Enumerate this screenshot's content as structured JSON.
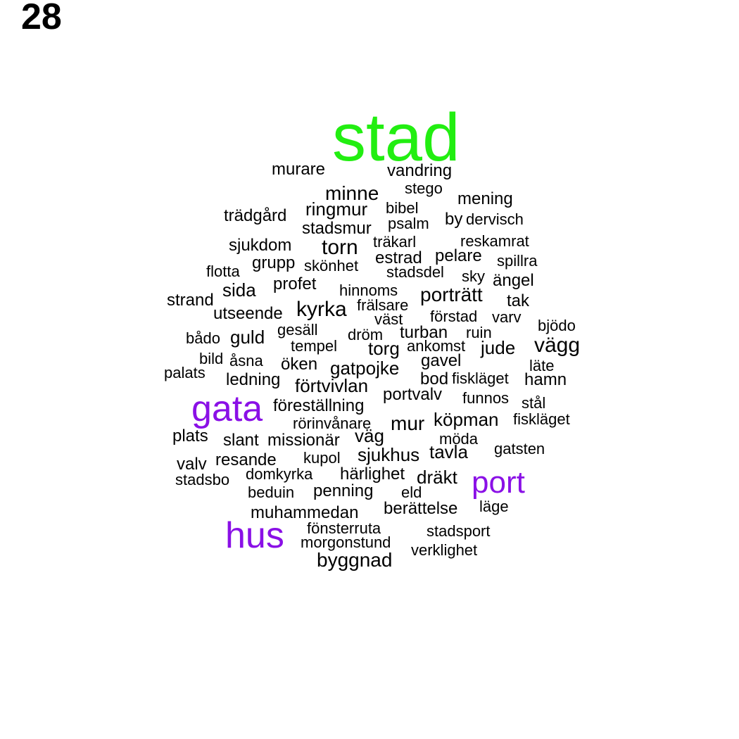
{
  "page_number": "28",
  "colors": {
    "highlight": "#22ee11",
    "accent": "#8a10e6",
    "default": "#000000"
  },
  "words": [
    {
      "text": "stad",
      "tier": "highlight"
    },
    {
      "text": "gata",
      "tier": "accent"
    },
    {
      "text": "hus",
      "tier": "accent"
    },
    {
      "text": "port",
      "tier": "accent"
    },
    {
      "text": "murare"
    },
    {
      "text": "vandring"
    },
    {
      "text": "minne"
    },
    {
      "text": "stego"
    },
    {
      "text": "mening"
    },
    {
      "text": "trädgård"
    },
    {
      "text": "ringmur"
    },
    {
      "text": "bibel"
    },
    {
      "text": "by"
    },
    {
      "text": "dervisch"
    },
    {
      "text": "stadsmur"
    },
    {
      "text": "psalm"
    },
    {
      "text": "sjukdom"
    },
    {
      "text": "torn"
    },
    {
      "text": "träkarl"
    },
    {
      "text": "reskamrat"
    },
    {
      "text": "grupp"
    },
    {
      "text": "estrad"
    },
    {
      "text": "pelare"
    },
    {
      "text": "spillra"
    },
    {
      "text": "flotta"
    },
    {
      "text": "skönhet"
    },
    {
      "text": "stadsdel"
    },
    {
      "text": "sky"
    },
    {
      "text": "ängel"
    },
    {
      "text": "profet"
    },
    {
      "text": "strand"
    },
    {
      "text": "sida"
    },
    {
      "text": "hinnoms"
    },
    {
      "text": "porträtt"
    },
    {
      "text": "tak"
    },
    {
      "text": "utseende"
    },
    {
      "text": "kyrka"
    },
    {
      "text": "frälsare"
    },
    {
      "text": "väst"
    },
    {
      "text": "förstad"
    },
    {
      "text": "varv"
    },
    {
      "text": "bjödo"
    },
    {
      "text": "gesäll"
    },
    {
      "text": "dröm"
    },
    {
      "text": "turban"
    },
    {
      "text": "ruin"
    },
    {
      "text": "bådo"
    },
    {
      "text": "guld"
    },
    {
      "text": "tempel"
    },
    {
      "text": "torg"
    },
    {
      "text": "ankomst"
    },
    {
      "text": "jude"
    },
    {
      "text": "vägg"
    },
    {
      "text": "bild"
    },
    {
      "text": "åsna"
    },
    {
      "text": "öken"
    },
    {
      "text": "gavel"
    },
    {
      "text": "läte"
    },
    {
      "text": "palats"
    },
    {
      "text": "gatpojke"
    },
    {
      "text": "bod"
    },
    {
      "text": "fiskläget"
    },
    {
      "text": "hamn"
    },
    {
      "text": "ledning"
    },
    {
      "text": "förtvivlan"
    },
    {
      "text": "portvalv"
    },
    {
      "text": "funnos"
    },
    {
      "text": "stål"
    },
    {
      "text": "föreställning"
    },
    {
      "text": "rörinvånare"
    },
    {
      "text": "mur"
    },
    {
      "text": "köpman"
    },
    {
      "text": "fiskläget"
    },
    {
      "text": "plats"
    },
    {
      "text": "slant"
    },
    {
      "text": "missionär"
    },
    {
      "text": "väg"
    },
    {
      "text": "möda"
    },
    {
      "text": "gatsten"
    },
    {
      "text": "valv"
    },
    {
      "text": "resande"
    },
    {
      "text": "kupol"
    },
    {
      "text": "sjukhus"
    },
    {
      "text": "tavla"
    },
    {
      "text": "stadsbo"
    },
    {
      "text": "domkyrka"
    },
    {
      "text": "härlighet"
    },
    {
      "text": "dräkt"
    },
    {
      "text": "beduin"
    },
    {
      "text": "penning"
    },
    {
      "text": "eld"
    },
    {
      "text": "muhammedan"
    },
    {
      "text": "berättelse"
    },
    {
      "text": "läge"
    },
    {
      "text": "fönsterruta"
    },
    {
      "text": "stadsport"
    },
    {
      "text": "morgonstund"
    },
    {
      "text": "verklighet"
    },
    {
      "text": "byggnad"
    }
  ]
}
